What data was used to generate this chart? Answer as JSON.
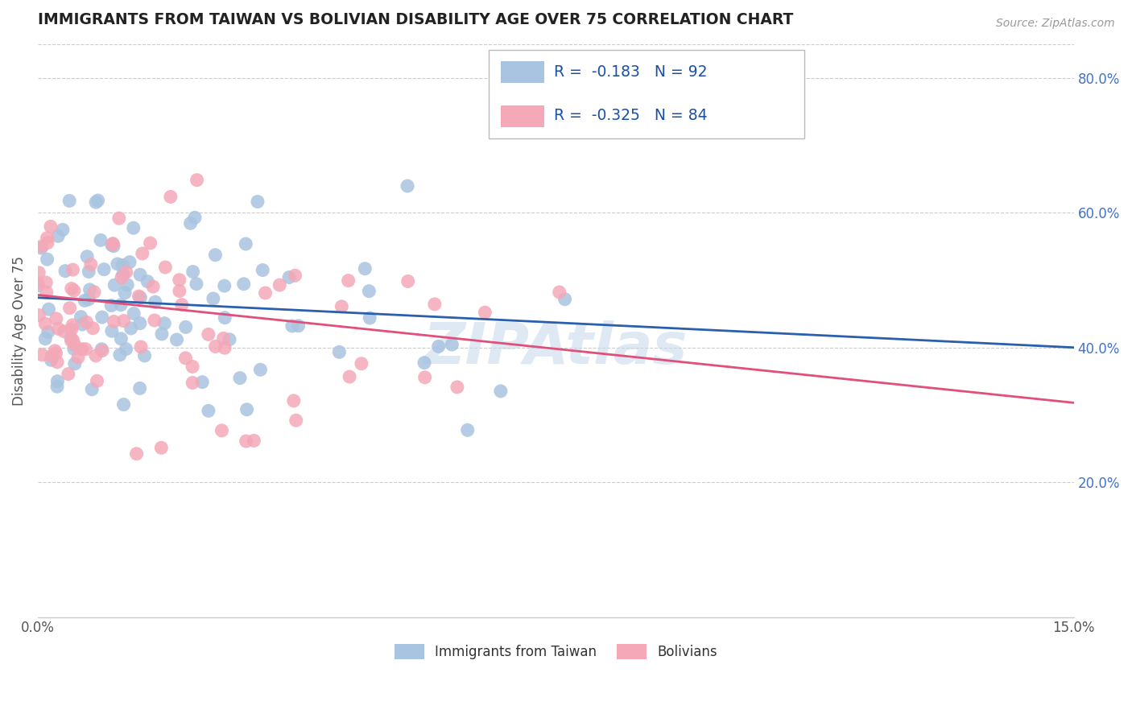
{
  "title": "IMMIGRANTS FROM TAIWAN VS BOLIVIAN DISABILITY AGE OVER 75 CORRELATION CHART",
  "source": "Source: ZipAtlas.com",
  "ylabel": "Disability Age Over 75",
  "xlim": [
    0.0,
    0.15
  ],
  "ylim": [
    0.0,
    0.85
  ],
  "y_ticks_right": [
    0.2,
    0.4,
    0.6,
    0.8
  ],
  "y_tick_labels_right": [
    "20.0%",
    "40.0%",
    "60.0%",
    "80.0%"
  ],
  "taiwan_color": "#a8c4e0",
  "bolivia_color": "#f4a8b8",
  "taiwan_line_color": "#2b5fad",
  "bolivia_line_color": "#e0507a",
  "taiwan_R": -0.183,
  "taiwan_N": 92,
  "bolivia_R": -0.325,
  "bolivia_N": 84,
  "legend_label_taiwan": "Immigrants from Taiwan",
  "legend_label_bolivia": "Bolivians",
  "watermark": "ZIPAtlas",
  "tw_line_x0": 0.0,
  "tw_line_y0": 0.474,
  "tw_line_x1": 0.15,
  "tw_line_y1": 0.4,
  "bo_line_x0": 0.0,
  "bo_line_y0": 0.478,
  "bo_line_x1": 0.15,
  "bo_line_y1": 0.318
}
